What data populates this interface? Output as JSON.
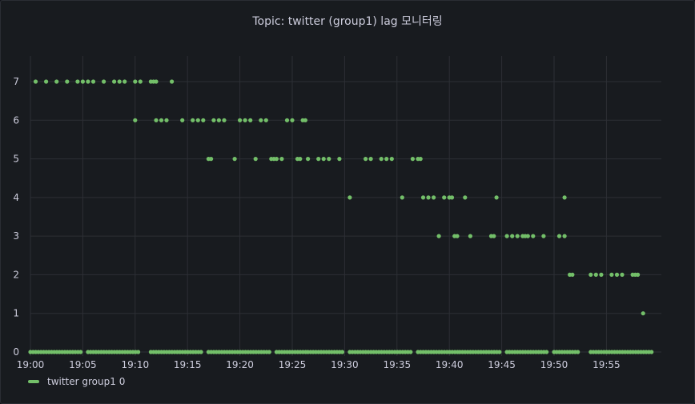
{
  "panel": {
    "title": "Topic: twitter (group1) lag 모니터링"
  },
  "colors": {
    "series": "#73bf69",
    "grid": "#2c2f35",
    "text": "#ccccdc"
  },
  "chart_data": {
    "type": "scatter",
    "title": "Topic: twitter (group1) lag 모니터링",
    "xlabel": "",
    "ylabel": "",
    "x_ticks": [
      "19:00",
      "19:05",
      "19:10",
      "19:15",
      "19:20",
      "19:25",
      "19:30",
      "19:35",
      "19:40",
      "19:45",
      "19:50",
      "19:55"
    ],
    "x_range": [
      "19:00",
      "19:59"
    ],
    "y_ticks": [
      0,
      1,
      2,
      3,
      4,
      5,
      6,
      7
    ],
    "ylim": [
      0,
      7
    ],
    "grid": true,
    "legend_position": "bottom-left",
    "series": [
      {
        "name": "twitter group1 0",
        "points": [
          [
            "19:00:30",
            7
          ],
          [
            "19:01:30",
            7
          ],
          [
            "19:02:30",
            7
          ],
          [
            "19:03:30",
            7
          ],
          [
            "19:04:30",
            7
          ],
          [
            "19:05:00",
            7
          ],
          [
            "19:05:30",
            7
          ],
          [
            "19:06:00",
            7
          ],
          [
            "19:07:00",
            7
          ],
          [
            "19:08:00",
            7
          ],
          [
            "19:08:30",
            7
          ],
          [
            "19:09:00",
            7
          ],
          [
            "19:10:00",
            7
          ],
          [
            "19:10:30",
            7
          ],
          [
            "19:11:30",
            7
          ],
          [
            "19:11:45",
            7
          ],
          [
            "19:12:00",
            7
          ],
          [
            "19:13:30",
            7
          ],
          [
            "19:10:00",
            6
          ],
          [
            "19:12:00",
            6
          ],
          [
            "19:12:30",
            6
          ],
          [
            "19:13:00",
            6
          ],
          [
            "19:14:30",
            6
          ],
          [
            "19:15:30",
            6
          ],
          [
            "19:16:00",
            6
          ],
          [
            "19:16:30",
            6
          ],
          [
            "19:17:30",
            6
          ],
          [
            "19:18:00",
            6
          ],
          [
            "19:18:30",
            6
          ],
          [
            "19:20:00",
            6
          ],
          [
            "19:20:30",
            6
          ],
          [
            "19:21:00",
            6
          ],
          [
            "19:22:00",
            6
          ],
          [
            "19:22:30",
            6
          ],
          [
            "19:24:30",
            6
          ],
          [
            "19:25:00",
            6
          ],
          [
            "19:26:00",
            6
          ],
          [
            "19:26:15",
            6
          ],
          [
            "19:17:00",
            5
          ],
          [
            "19:17:15",
            5
          ],
          [
            "19:19:30",
            5
          ],
          [
            "19:21:30",
            5
          ],
          [
            "19:23:00",
            5
          ],
          [
            "19:23:15",
            5
          ],
          [
            "19:23:30",
            5
          ],
          [
            "19:24:00",
            5
          ],
          [
            "19:25:30",
            5
          ],
          [
            "19:25:45",
            5
          ],
          [
            "19:26:30",
            5
          ],
          [
            "19:27:30",
            5
          ],
          [
            "19:28:00",
            5
          ],
          [
            "19:28:30",
            5
          ],
          [
            "19:29:30",
            5
          ],
          [
            "19:32:00",
            5
          ],
          [
            "19:32:30",
            5
          ],
          [
            "19:33:30",
            5
          ],
          [
            "19:34:00",
            5
          ],
          [
            "19:34:30",
            5
          ],
          [
            "19:36:30",
            5
          ],
          [
            "19:37:00",
            5
          ],
          [
            "19:37:15",
            5
          ],
          [
            "19:30:30",
            4
          ],
          [
            "19:35:30",
            4
          ],
          [
            "19:37:30",
            4
          ],
          [
            "19:38:00",
            4
          ],
          [
            "19:38:30",
            4
          ],
          [
            "19:39:30",
            4
          ],
          [
            "19:40:00",
            4
          ],
          [
            "19:40:15",
            4
          ],
          [
            "19:41:30",
            4
          ],
          [
            "19:44:30",
            4
          ],
          [
            "19:51:00",
            4
          ],
          [
            "19:39:00",
            3
          ],
          [
            "19:40:30",
            3
          ],
          [
            "19:40:45",
            3
          ],
          [
            "19:42:00",
            3
          ],
          [
            "19:44:00",
            3
          ],
          [
            "19:44:15",
            3
          ],
          [
            "19:45:30",
            3
          ],
          [
            "19:46:00",
            3
          ],
          [
            "19:46:30",
            3
          ],
          [
            "19:47:00",
            3
          ],
          [
            "19:47:15",
            3
          ],
          [
            "19:47:30",
            3
          ],
          [
            "19:48:00",
            3
          ],
          [
            "19:49:00",
            3
          ],
          [
            "19:50:30",
            3
          ],
          [
            "19:51:00",
            3
          ],
          [
            "19:51:30",
            2
          ],
          [
            "19:51:45",
            2
          ],
          [
            "19:53:30",
            2
          ],
          [
            "19:54:00",
            2
          ],
          [
            "19:54:30",
            2
          ],
          [
            "19:55:30",
            2
          ],
          [
            "19:56:00",
            2
          ],
          [
            "19:56:30",
            2
          ],
          [
            "19:57:30",
            2
          ],
          [
            "19:57:45",
            2
          ],
          [
            "19:58:00",
            2
          ],
          [
            "19:58:30",
            1
          ]
        ],
        "zero_runs": [
          [
            "19:00:00",
            "19:05:00"
          ],
          [
            "19:05:30",
            "19:10:30"
          ],
          [
            "19:11:30",
            "19:16:30"
          ],
          [
            "19:17:00",
            "19:23:00"
          ],
          [
            "19:23:30",
            "19:26:30"
          ],
          [
            "19:26:30",
            "19:30:00"
          ],
          [
            "19:30:30",
            "19:36:30"
          ],
          [
            "19:37:00",
            "19:41:00"
          ],
          [
            "19:41:00",
            "19:45:00"
          ],
          [
            "19:45:30",
            "19:49:30"
          ],
          [
            "19:50:00",
            "19:52:30"
          ],
          [
            "19:53:30",
            "19:59:30"
          ]
        ]
      }
    ]
  }
}
